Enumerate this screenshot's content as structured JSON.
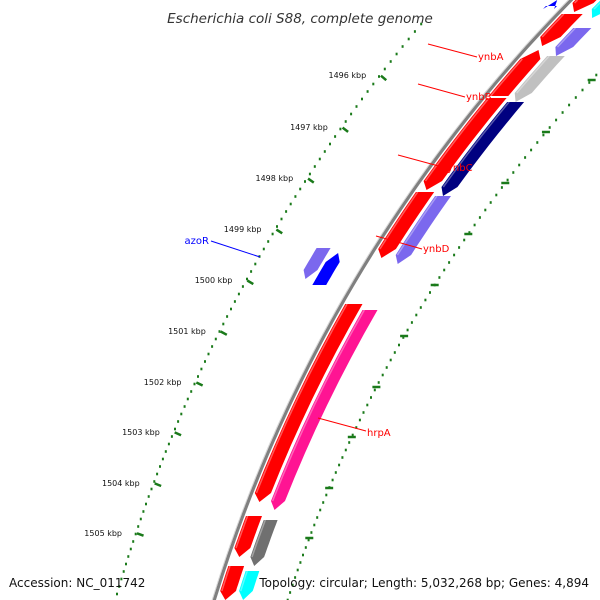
{
  "title": "Escherichia coli S88, complete genome",
  "accession": "Accession: NC_011742",
  "summary": "Topology: circular; Length: 5,032,268 bp; Genes: 4,894",
  "colors": {
    "forward_cds": "#ff0000",
    "reverse_cds": "#7b68ee",
    "blue_cds": "#0000ff",
    "navy_cds": "#000080",
    "grey_cds": "#c0c0c0",
    "dark_grey_cds": "#707070",
    "pink_cds": "#ff1493",
    "cyan_cds": "#00ffff",
    "tick": "#1a7a1a",
    "backbone": "#808080",
    "label_red": "#ff0000",
    "label_blue": "#0000ff"
  },
  "ticks": [
    {
      "label": "1496 kbp"
    },
    {
      "label": "1497 kbp"
    },
    {
      "label": "1498 kbp"
    },
    {
      "label": "1499 kbp"
    },
    {
      "label": "1500 kbp"
    },
    {
      "label": "1501 kbp"
    },
    {
      "label": "1502 kbp"
    },
    {
      "label": "1503 kbp"
    },
    {
      "label": "1504 kbp"
    },
    {
      "label": "1505 kbp"
    }
  ],
  "gene_labels": [
    {
      "name": "ynbA",
      "color": "#ff0000"
    },
    {
      "name": "ynbB",
      "color": "#ff0000"
    },
    {
      "name": "ynbC",
      "color": "#ff0000"
    },
    {
      "name": "ynbD",
      "color": "#ff0000"
    },
    {
      "name": "azoR",
      "color": "#0000ff"
    },
    {
      "name": "hrpA",
      "color": "#ff0000"
    }
  ]
}
